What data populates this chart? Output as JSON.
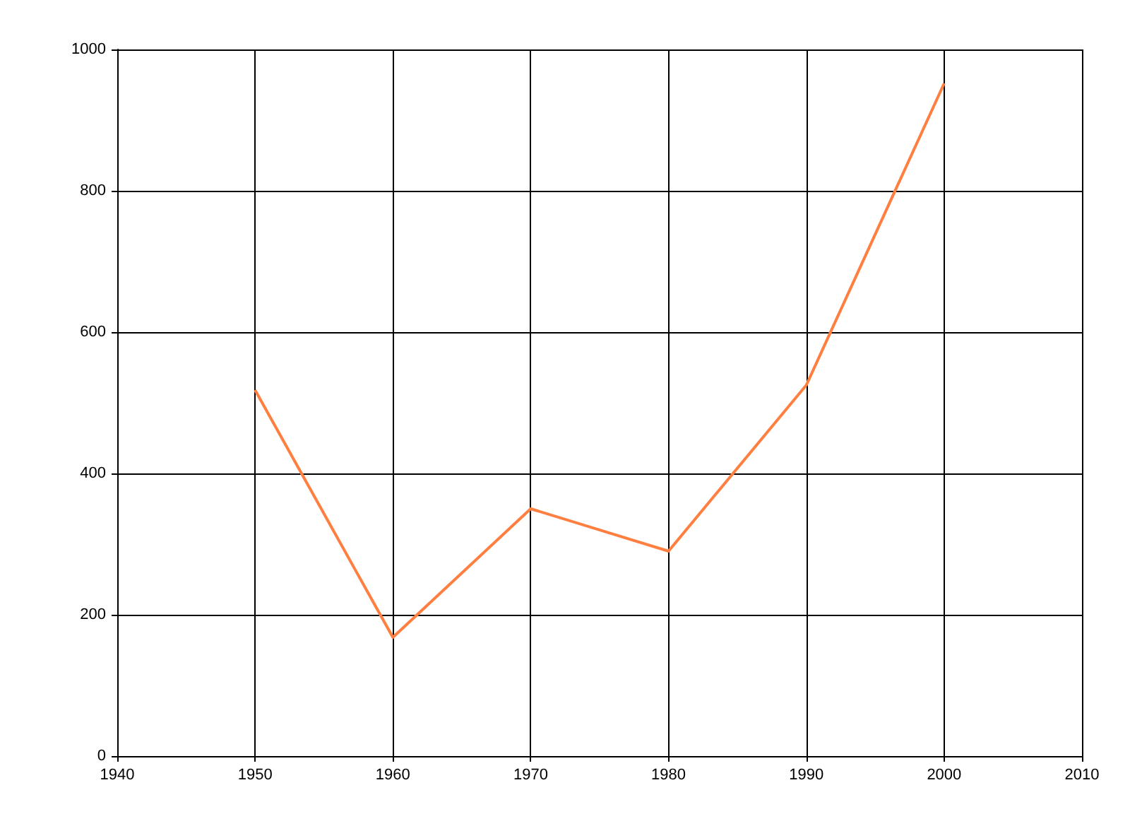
{
  "chart_data": {
    "type": "line",
    "x": [
      1950,
      1960,
      1970,
      1980,
      1990,
      2000
    ],
    "series": [
      {
        "color": "#ff7f40",
        "values": [
          518,
          168,
          350,
          290,
          525,
          952
        ]
      }
    ],
    "xlim": [
      1940,
      2010
    ],
    "xticks": [
      1940,
      1950,
      1960,
      1970,
      1980,
      1990,
      2000,
      2010
    ],
    "ylim": [
      0,
      1000
    ],
    "yticks": [
      0,
      200,
      400,
      600,
      800,
      1000
    ],
    "grid": true,
    "marker": "none",
    "line_style": "solid"
  }
}
